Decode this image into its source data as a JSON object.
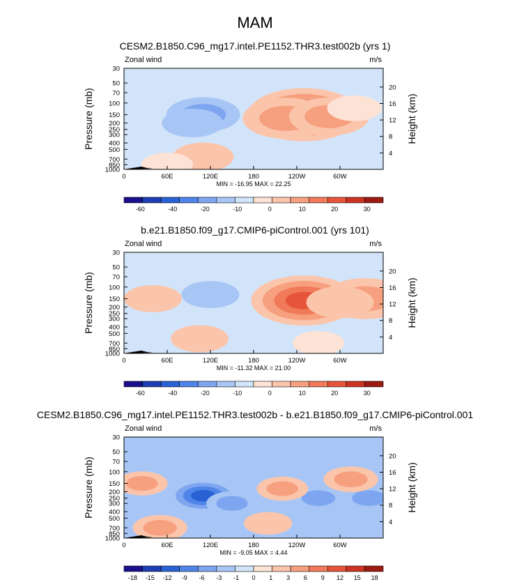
{
  "page_title": "MAM",
  "colors": {
    "scale_abs": [
      "#1a0f8c",
      "#1d3fb5",
      "#2a62d6",
      "#4f84e8",
      "#7ea6f0",
      "#a8c6f5",
      "#d2e4fa",
      "#fde3d5",
      "#fbc5ab",
      "#f7a07f",
      "#f07a59",
      "#e6553b",
      "#cc3323",
      "#9c1b10"
    ],
    "scale_diff": [
      "#1a0f8c",
      "#1d3fb5",
      "#2a62d6",
      "#4f84e8",
      "#7ea6f0",
      "#a8c6f5",
      "#d2e4fa",
      "#fde3d5",
      "#fbc5ab",
      "#f7a07f",
      "#f07a59",
      "#e6553b",
      "#cc3323",
      "#9c1b10"
    ]
  },
  "chart_data": [
    {
      "type": "heatmap",
      "title": "CESM2.B1850.C96_mg17.intel.PE1152.THR3.test002b (yrs 1)",
      "left_label": "Zonal wind",
      "units": "m/s",
      "ylabel": "Pressure (mb)",
      "y2label": "Height (km)",
      "yticks": [
        "30",
        "50",
        "70",
        "100",
        "150",
        "200",
        "250",
        "300",
        "400",
        "500",
        "700",
        "850",
        "1000"
      ],
      "y2ticks": [
        "20",
        "16",
        "12",
        "8",
        "4"
      ],
      "xticks": [
        "0",
        "60E",
        "120E",
        "180",
        "120W",
        "60W"
      ],
      "stats": "MIN = -16.95  MAX = 22.25",
      "colorbar_labels": [
        "-60",
        "-40",
        "-20",
        "-10",
        "0",
        "10",
        "20",
        "30"
      ],
      "features": [
        {
          "lon": 250,
          "p": 150,
          "value": 22
        },
        {
          "lon": 225,
          "p": 170,
          "value": 14
        },
        {
          "lon": 285,
          "p": 160,
          "value": 12
        },
        {
          "lon": 110,
          "p": 150,
          "value": -10
        },
        {
          "lon": 95,
          "p": 200,
          "value": -6
        },
        {
          "lon": 110,
          "p": 650,
          "value": 6
        },
        {
          "lon": 60,
          "p": 850,
          "value": 3
        },
        {
          "lon": 320,
          "p": 120,
          "value": 4
        }
      ]
    },
    {
      "type": "heatmap",
      "title": "b.e21.B1850.f09_g17.CMIP6-piControl.001 (yrs 101)",
      "left_label": "Zonal wind",
      "units": "m/s",
      "ylabel": "Pressure (mb)",
      "y2label": "Height (km)",
      "yticks": [
        "30",
        "50",
        "70",
        "100",
        "150",
        "200",
        "250",
        "300",
        "400",
        "500",
        "700",
        "850",
        "1000"
      ],
      "y2ticks": [
        "20",
        "16",
        "12",
        "8",
        "4"
      ],
      "xticks": [
        "0",
        "60E",
        "120E",
        "180",
        "120W",
        "60W"
      ],
      "stats": "MIN = -11.32  MAX = 21.00",
      "colorbar_labels": [
        "-60",
        "-40",
        "-20",
        "-10",
        "0",
        "10",
        "20",
        "30"
      ],
      "features": [
        {
          "lon": 250,
          "p": 160,
          "value": 20
        },
        {
          "lon": 335,
          "p": 150,
          "value": 14
        },
        {
          "lon": 300,
          "p": 170,
          "value": 8
        },
        {
          "lon": 40,
          "p": 150,
          "value": 5
        },
        {
          "lon": 105,
          "p": 600,
          "value": 5
        },
        {
          "lon": 120,
          "p": 130,
          "value": -5
        },
        {
          "lon": 270,
          "p": 700,
          "value": 3
        }
      ]
    },
    {
      "type": "heatmap",
      "title": "CESM2.B1850.C96_mg17.intel.PE1152.THR3.test002b - b.e21.B1850.f09_g17.CMIP6-piControl.001",
      "left_label": "Zonal wind",
      "units": "m/s",
      "ylabel": "Pressure (mb)",
      "y2label": "Height (km)",
      "yticks": [
        "30",
        "50",
        "70",
        "100",
        "150",
        "200",
        "250",
        "300",
        "400",
        "500",
        "700",
        "850",
        "1000"
      ],
      "y2ticks": [
        "20",
        "16",
        "12",
        "8",
        "4"
      ],
      "xticks": [
        "0",
        "60E",
        "120E",
        "180",
        "120W",
        "60W"
      ],
      "stats": "MIN = -9.05  MAX = 4.44",
      "colorbar_labels": [
        "-18",
        "-15",
        "-12",
        "-9",
        "-6",
        "-3",
        "-1",
        "0",
        "1",
        "3",
        "6",
        "9",
        "12",
        "15",
        "18"
      ],
      "features": [
        {
          "lon": 110,
          "p": 230,
          "value": -9
        },
        {
          "lon": 270,
          "p": 250,
          "value": -4
        },
        {
          "lon": 340,
          "p": 250,
          "value": -4
        },
        {
          "lon": 150,
          "p": 300,
          "value": -3
        },
        {
          "lon": 220,
          "p": 180,
          "value": 3
        },
        {
          "lon": 315,
          "p": 130,
          "value": 4
        },
        {
          "lon": 50,
          "p": 700,
          "value": 4
        },
        {
          "lon": 25,
          "p": 150,
          "value": 3
        },
        {
          "lon": 200,
          "p": 600,
          "value": 2
        },
        {
          "lon": 80,
          "p": 80,
          "value": -2
        }
      ]
    }
  ]
}
